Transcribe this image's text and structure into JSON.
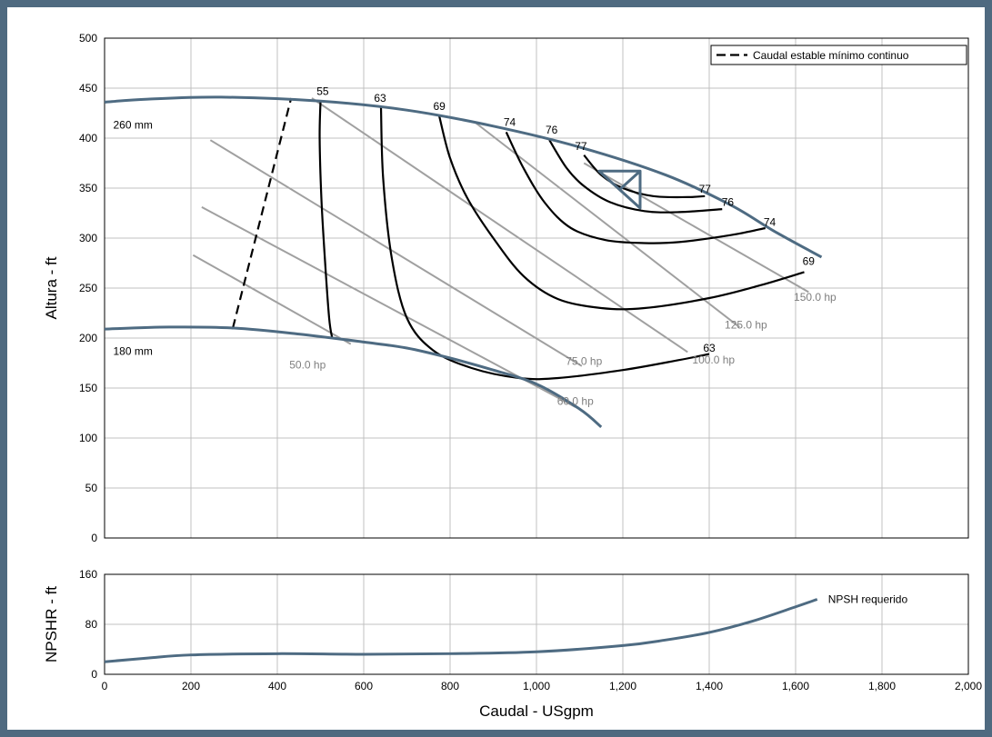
{
  "chart_data": {
    "type": "line",
    "x_axis": {
      "label": "Caudal - USgpm",
      "range": [
        0,
        2000
      ],
      "ticks": [
        0,
        200,
        400,
        600,
        800,
        1000,
        1200,
        1400,
        1600,
        1800,
        2000
      ],
      "tick_labels": [
        "0",
        "200",
        "400",
        "600",
        "800",
        "1,000",
        "1,200",
        "1,400",
        "1,600",
        "1,800",
        "2,000"
      ]
    },
    "main": {
      "ylabel": "Altura - ft",
      "ylim": [
        0,
        500
      ],
      "ticks": [
        0,
        50,
        100,
        150,
        200,
        250,
        300,
        350,
        400,
        450,
        500
      ],
      "tick_labels": [
        "0",
        "50",
        "100",
        "150",
        "200",
        "250",
        "300",
        "350",
        "400",
        "450",
        "500"
      ],
      "grid": true,
      "legend": {
        "position": "top-right",
        "label": "Caudal estable mínimo continuo"
      },
      "colors": {
        "impeller": "#4e6b82",
        "efficiency": "#000000",
        "power": "#a0a0a0",
        "grid": "#c0c0c0",
        "power_label": "#7f7f7f"
      },
      "impeller_curves": [
        {
          "name": "260 mm",
          "points": [
            [
              0,
              436
            ],
            [
              100,
              439
            ],
            [
              270,
              441
            ],
            [
              500,
              437
            ],
            [
              700,
              428
            ],
            [
              900,
              412
            ],
            [
              1100,
              391
            ],
            [
              1300,
              363
            ],
            [
              1450,
              333
            ],
            [
              1550,
              307
            ],
            [
              1660,
              281
            ]
          ]
        },
        {
          "name": "180 mm",
          "points": [
            [
              0,
              209
            ],
            [
              150,
              211
            ],
            [
              300,
              210
            ],
            [
              450,
              204
            ],
            [
              600,
              196
            ],
            [
              700,
              190
            ],
            [
              800,
              180
            ],
            [
              900,
              168
            ],
            [
              1000,
              154
            ],
            [
              1100,
              129
            ],
            [
              1150,
              111
            ]
          ]
        }
      ],
      "efficiency_curves": [
        {
          "label": "55",
          "points": [
            [
              500,
              437
            ],
            [
              498,
              400
            ],
            [
              502,
              340
            ],
            [
              510,
              280
            ],
            [
              520,
              220
            ],
            [
              527,
              200
            ]
          ]
        },
        {
          "label": "63",
          "points": [
            [
              640,
              431
            ],
            [
              645,
              360
            ],
            [
              665,
              280
            ],
            [
              700,
              220
            ],
            [
              760,
              188
            ],
            [
              850,
              170
            ],
            [
              960,
              160
            ],
            [
              1050,
              160
            ],
            [
              1200,
              168
            ],
            [
              1330,
              178
            ],
            [
              1400,
              184
            ]
          ]
        },
        {
          "label": "69",
          "points": [
            [
              775,
              422
            ],
            [
              800,
              380
            ],
            [
              840,
              340
            ],
            [
              900,
              300
            ],
            [
              970,
              262
            ],
            [
              1050,
              239
            ],
            [
              1150,
              230
            ],
            [
              1250,
              230
            ],
            [
              1400,
              240
            ],
            [
              1520,
              253
            ],
            [
              1620,
              266
            ]
          ]
        },
        {
          "label": "74",
          "points": [
            [
              930,
              406
            ],
            [
              970,
              370
            ],
            [
              1020,
              335
            ],
            [
              1080,
              310
            ],
            [
              1160,
              298
            ],
            [
              1250,
              295
            ],
            [
              1330,
              296
            ],
            [
              1450,
              303
            ],
            [
              1530,
              310
            ]
          ]
        },
        {
          "label": "76",
          "points": [
            [
              1030,
              398
            ],
            [
              1070,
              370
            ],
            [
              1110,
              352
            ],
            [
              1170,
              336
            ],
            [
              1250,
              327
            ],
            [
              1330,
              326
            ],
            [
              1430,
              329
            ]
          ]
        },
        {
          "label": "77",
          "points": [
            [
              1110,
              383
            ],
            [
              1150,
              363
            ],
            [
              1200,
              350
            ],
            [
              1270,
              342
            ],
            [
              1350,
              341
            ],
            [
              1390,
              342
            ]
          ]
        }
      ],
      "efficiency_labels": [
        {
          "text": "55",
          "x": 505,
          "y": 447
        },
        {
          "text": "63",
          "x": 638,
          "y": 440
        },
        {
          "text": "69",
          "x": 775,
          "y": 432
        },
        {
          "text": "74",
          "x": 938,
          "y": 416
        },
        {
          "text": "76",
          "x": 1035,
          "y": 408
        },
        {
          "text": "77",
          "x": 1103,
          "y": 392
        },
        {
          "text": "77",
          "x": 1390,
          "y": 349
        },
        {
          "text": "76",
          "x": 1443,
          "y": 336
        },
        {
          "text": "74",
          "x": 1540,
          "y": 316
        },
        {
          "text": "69",
          "x": 1630,
          "y": 277
        },
        {
          "text": "63",
          "x": 1400,
          "y": 190
        }
      ],
      "power_curves": [
        {
          "label": "50.0 hp",
          "points": [
            [
              205,
              283
            ],
            [
              570,
              194
            ]
          ],
          "label_pos": [
            470,
            173
          ]
        },
        {
          "label": "60.0 hp",
          "points": [
            [
              225,
              331
            ],
            [
              1090,
              131
            ]
          ],
          "label_pos": [
            1090,
            137
          ]
        },
        {
          "label": "75.0 hp",
          "points": [
            [
              245,
              398
            ],
            [
              1105,
              172
            ]
          ],
          "label_pos": [
            1110,
            177
          ]
        },
        {
          "label": "100.0 hp",
          "points": [
            [
              480,
              440
            ],
            [
              1350,
              186
            ]
          ],
          "label_pos": [
            1410,
            178
          ]
        },
        {
          "label": "125.0 hp",
          "points": [
            [
              860,
              415
            ],
            [
              1470,
              211
            ]
          ],
          "label_pos": [
            1485,
            213
          ]
        },
        {
          "label": "150.0 hp",
          "points": [
            [
              1110,
              375
            ],
            [
              1630,
              246
            ]
          ],
          "label_pos": [
            1645,
            241
          ]
        }
      ],
      "min_flow_line": [
        [
          297,
          210
        ],
        [
          432,
          440
        ]
      ],
      "bep_marker": [
        [
          1145,
          367
        ],
        [
          1240,
          367
        ],
        [
          1240,
          330
        ]
      ],
      "annotations": [
        {
          "text": "260 mm",
          "x": 20,
          "y": 413
        },
        {
          "text": "180 mm",
          "x": 20,
          "y": 187
        }
      ]
    },
    "npsh": {
      "ylabel": "NPSHR - ft",
      "ylim": [
        0,
        160
      ],
      "ticks": [
        0,
        80,
        160
      ],
      "tick_labels": [
        "0",
        "80",
        "160"
      ],
      "grid": true,
      "series": [
        {
          "name": "NPSH requerido",
          "points": [
            [
              0,
              20
            ],
            [
              100,
              26
            ],
            [
              200,
              31
            ],
            [
              400,
              33
            ],
            [
              600,
              32
            ],
            [
              800,
              33
            ],
            [
              1000,
              36
            ],
            [
              1200,
              46
            ],
            [
              1300,
              55
            ],
            [
              1400,
              67
            ],
            [
              1500,
              85
            ],
            [
              1600,
              108
            ],
            [
              1650,
              120
            ]
          ]
        }
      ]
    }
  }
}
